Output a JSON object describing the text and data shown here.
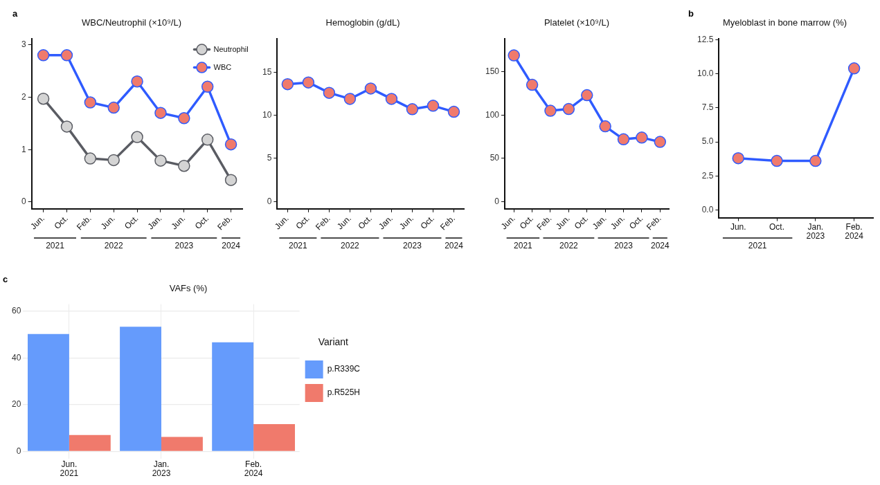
{
  "chart_data": [
    {
      "type": "line",
      "title": "WBC/Neutrophil (×10⁹/L)",
      "categories": [
        "Jun.",
        "Oct.",
        "Feb.",
        "Jun.",
        "Oct.",
        "Jan.",
        "Jun.",
        "Oct.",
        "Feb."
      ],
      "series": [
        {
          "name": "Neutrophil",
          "color": "#5a5c63",
          "colors": [
            "#d4d4d4",
            "#d4d4d4",
            "#d4d4d4",
            "#d4d4d4",
            "#d4d4d4",
            "#d4d4d4",
            "#d4d4d4",
            "#d4d4d4",
            "#d4d4d4"
          ],
          "values": [
            1.97,
            1.44,
            0.83,
            0.8,
            1.24,
            0.79,
            0.69,
            1.19,
            0.42
          ]
        },
        {
          "name": "WBC",
          "color": "#2f5bff",
          "colors": [
            "#f07a6c",
            "#f07a6c",
            "#f07a6c",
            "#f07a6c",
            "#f07a6c",
            "#f07a6c",
            "#f07a6c",
            "#f07a6c",
            "#f07a6c"
          ],
          "values": [
            2.8,
            2.8,
            1.9,
            1.8,
            2.3,
            1.7,
            1.6,
            2.2,
            1.1
          ]
        }
      ],
      "ylim": [
        -0.13,
        3.12
      ],
      "yticks": [
        0,
        1,
        2,
        3
      ],
      "grid": false,
      "legend": "top right",
      "marker": "circle",
      "line_style": "solid",
      "annotations": [
        "a",
        "2021",
        "2022",
        "2023",
        "2024"
      ]
    },
    {
      "type": "line",
      "title": "Hemoglobin (g/dL)",
      "categories": [
        "Jun.",
        "Oct.",
        "Feb.",
        "Jun.",
        "Oct.",
        "Jan.",
        "Jun.",
        "Oct.",
        "Feb."
      ],
      "series": [
        {
          "color": "#2f5bff",
          "colors": [
            "#f07a6c",
            "#f07a6c",
            "#f07a6c",
            "#f07a6c",
            "#f07a6c",
            "#f07a6c",
            "#f07a6c",
            "#f07a6c",
            "#f07a6c"
          ],
          "values": [
            13.6,
            13.8,
            12.6,
            11.9,
            13.1,
            11.9,
            10.7,
            11.1,
            10.4
          ]
        }
      ],
      "ylim": [
        -0.85,
        18.9
      ],
      "yticks": [
        0,
        5,
        10,
        15
      ],
      "grid": false,
      "marker": "circle",
      "line_style": "solid",
      "annotations": [
        "2021",
        "2022",
        "2023",
        "2024"
      ]
    },
    {
      "type": "line",
      "title": "Platelet (×10⁹/L)",
      "categories": [
        "Jun.",
        "Oct.",
        "Feb.",
        "Jun.",
        "Oct.",
        "Jan.",
        "Jun.",
        "Oct.",
        "Feb."
      ],
      "series": [
        {
          "color": "#2f5bff",
          "colors": [
            "#f07a6c",
            "#f07a6c",
            "#f07a6c",
            "#f07a6c",
            "#f07a6c",
            "#f07a6c",
            "#f07a6c",
            "#f07a6c",
            "#f07a6c"
          ],
          "values": [
            169,
            135,
            105,
            107,
            123,
            87,
            72,
            74,
            69
          ]
        }
      ],
      "ylim": [
        -8.4,
        188.6
      ],
      "yticks": [
        0,
        50,
        100,
        150
      ],
      "grid": false,
      "marker": "circle",
      "line_style": "solid",
      "annotations": [
        "2021",
        "2022",
        "2023",
        "2024"
      ]
    },
    {
      "type": "line",
      "title": "Myeloblast in bone marrow (%)",
      "categories": [
        "Jun.",
        "Oct.",
        "Jan.",
        "Feb."
      ],
      "series": [
        {
          "color": "#2f5bff",
          "colors": [
            "#f07a6c",
            "#f07a6c",
            "#f07a6c",
            "#f07a6c"
          ],
          "values": [
            3.8,
            3.6,
            3.6,
            10.4
          ]
        }
      ],
      "ylim": [
        -0.57,
        12.6
      ],
      "yticks": [
        {
          "value": 0,
          "label": "0.0"
        },
        {
          "value": 2.5,
          "label": "2.5"
        },
        {
          "value": 5,
          "label": "5.0"
        },
        {
          "value": 7.5,
          "label": "7.5"
        },
        {
          "value": 10,
          "label": "10.0"
        },
        {
          "value": 12.5,
          "label": "12.5"
        }
      ],
      "grid": false,
      "marker": "circle",
      "line_style": "solid",
      "annotations": [
        "b",
        "2021",
        "2023",
        "2024"
      ]
    },
    {
      "type": "bar",
      "title": "VAFs (%)",
      "categories": [
        "Jun.",
        "Jan.",
        "Feb."
      ],
      "series": [
        {
          "name": "p.R339C",
          "color": "#659bfc",
          "values": [
            50.2,
            53.3,
            46.7
          ]
        },
        {
          "name": "p.R525H",
          "color": "#f07a6c",
          "values": [
            7.0,
            6.2,
            11.7
          ]
        }
      ],
      "ylim": [
        -3,
        63
      ],
      "yticks": [
        0,
        20,
        40,
        60
      ],
      "grid": true,
      "legend": "right",
      "legend_title": "Variant",
      "annotations": [
        "c",
        "2021",
        "2023",
        "2024"
      ]
    }
  ]
}
